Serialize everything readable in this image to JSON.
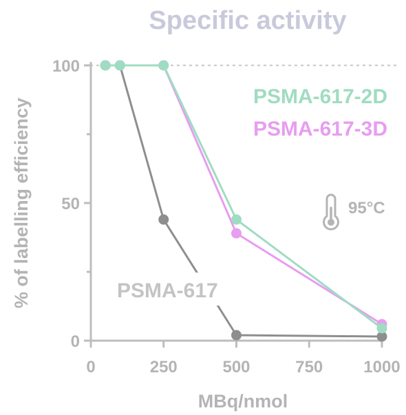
{
  "chart_data": {
    "type": "line",
    "title": "Specific activity",
    "xlabel": "MBq/nmol",
    "ylabel": "% of labelling efficiency",
    "xlim": [
      0,
      1000
    ],
    "ylim": [
      0,
      100
    ],
    "xticks": [
      0,
      250,
      500,
      750,
      1000
    ],
    "yticks": [
      0,
      50,
      100
    ],
    "reference_line": 100,
    "annotation": "95°C",
    "colors": {
      "title": "#c9c9dc",
      "axis": "#bdbdbd",
      "text": "#b4b4b4",
      "reference": "#cfcfcf"
    },
    "series": [
      {
        "name": "PSMA-617",
        "color": "#8e8e8e",
        "label_color": "#c4c4c4",
        "x": [
          50,
          100,
          250,
          500,
          1000
        ],
        "y": [
          100,
          100,
          44,
          2,
          1.5
        ]
      },
      {
        "name": "PSMA-617-3D",
        "color": "#e79df0",
        "label_color": "#e79df0",
        "x": [
          50,
          100,
          250,
          500,
          1000
        ],
        "y": [
          100,
          100,
          100,
          39,
          6
        ]
      },
      {
        "name": "PSMA-617-2D",
        "color": "#9fdcc2",
        "label_color": "#9fdcc2",
        "x": [
          50,
          100,
          250,
          500,
          1000
        ],
        "y": [
          100,
          100,
          100,
          44,
          4.5
        ]
      }
    ]
  }
}
